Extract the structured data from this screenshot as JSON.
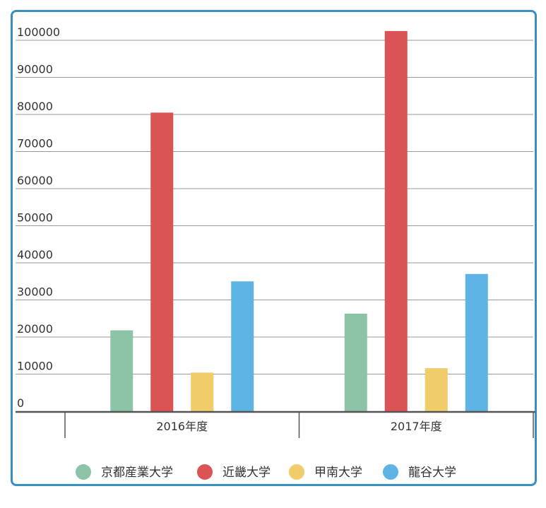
{
  "chart_data": {
    "type": "bar",
    "categories": [
      "2016年度",
      "2017年度"
    ],
    "series": [
      {
        "name": "京都産業大学",
        "values": [
          21800,
          26300
        ],
        "color": "#8dc3a7"
      },
      {
        "name": "近畿大学",
        "values": [
          80500,
          102500
        ],
        "color": "#dc5356"
      },
      {
        "name": "甲南大学",
        "values": [
          10400,
          11600
        ],
        "color": "#f0cc6a"
      },
      {
        "name": "龍谷大学",
        "values": [
          35000,
          37000
        ],
        "color": "#5db3e4"
      }
    ],
    "yticks": [
      "0",
      "10000",
      "20000",
      "30000",
      "40000",
      "50000",
      "60000",
      "70000",
      "80000",
      "90000",
      "100000"
    ],
    "ylim": [
      0,
      100000
    ],
    "grid": true,
    "legend_position": "bottom",
    "border_color": "#3a8fc0"
  }
}
